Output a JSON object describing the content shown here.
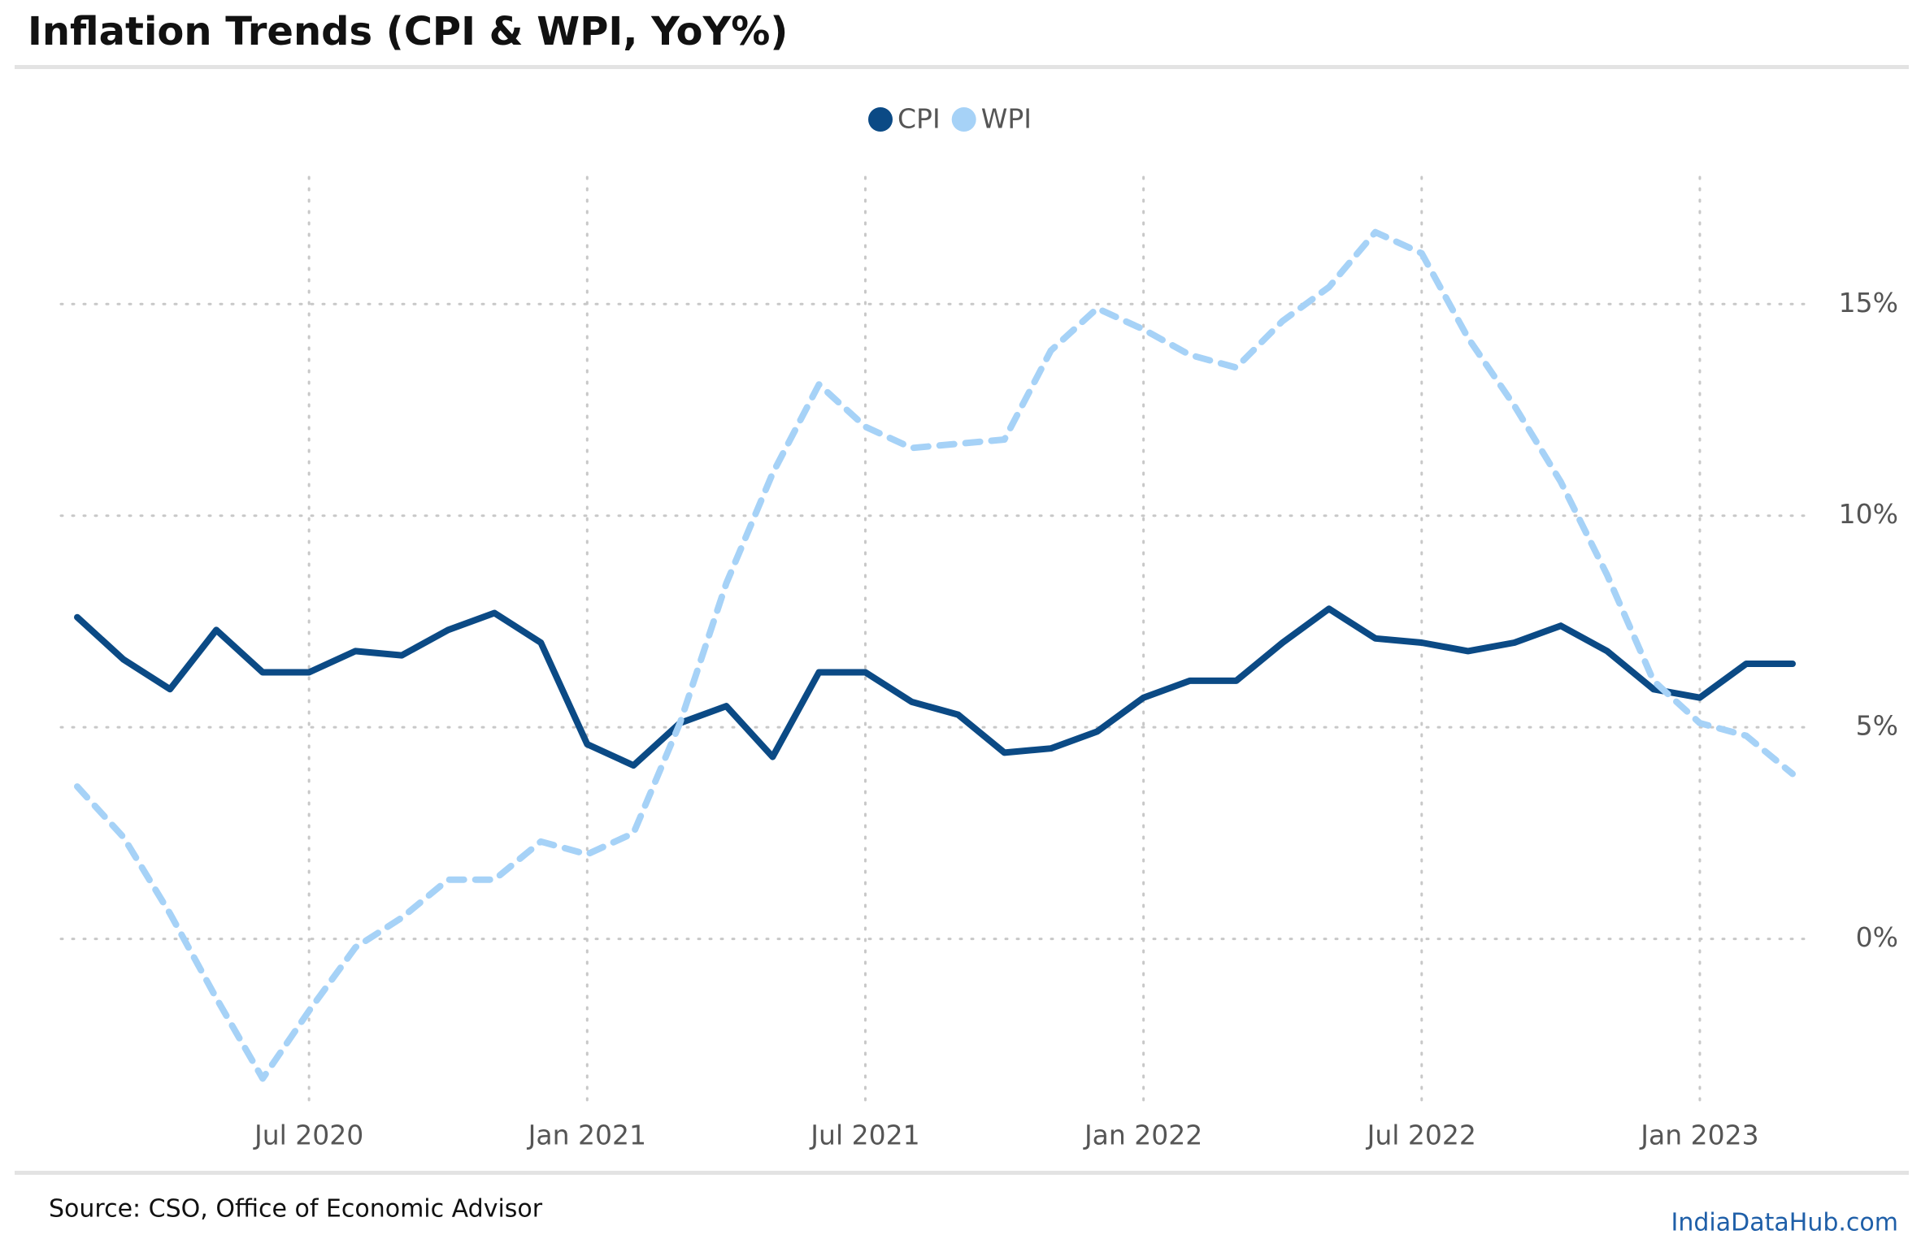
{
  "chart_data": {
    "type": "line",
    "title": "Inflation Trends (CPI & WPI, YoY%)",
    "source": "Source: CSO, Office of Economic Advisor",
    "brand": "IndiaDataHub.com",
    "x": [
      "2020-02",
      "2020-03",
      "2020-04",
      "2020-05",
      "2020-06",
      "2020-07",
      "2020-08",
      "2020-09",
      "2020-10",
      "2020-11",
      "2020-12",
      "2021-01",
      "2021-02",
      "2021-03",
      "2021-04",
      "2021-05",
      "2021-06",
      "2021-07",
      "2021-08",
      "2021-09",
      "2021-10",
      "2021-11",
      "2021-12",
      "2022-01",
      "2022-02",
      "2022-03",
      "2022-04",
      "2022-05",
      "2022-06",
      "2022-07",
      "2022-08",
      "2022-09",
      "2022-10",
      "2022-11",
      "2022-12",
      "2023-01",
      "2023-02",
      "2023-03"
    ],
    "series": [
      {
        "name": "CPI",
        "color": "#0b4a85",
        "dash": false,
        "values": [
          7.6,
          6.6,
          5.9,
          7.3,
          6.3,
          6.3,
          6.8,
          6.7,
          7.3,
          7.7,
          7.0,
          4.6,
          4.1,
          5.1,
          5.5,
          4.3,
          6.3,
          6.3,
          5.6,
          5.3,
          4.4,
          4.5,
          4.9,
          5.7,
          6.1,
          6.1,
          7.0,
          7.8,
          7.1,
          7.0,
          6.8,
          7.0,
          7.4,
          6.8,
          5.9,
          5.7,
          6.5,
          6.5
        ]
      },
      {
        "name": "WPI",
        "color": "#a6d2f7",
        "dash": true,
        "values": [
          3.6,
          2.4,
          0.6,
          -1.4,
          -3.3,
          -1.7,
          -0.2,
          0.5,
          1.4,
          1.4,
          2.3,
          2.0,
          2.5,
          5.1,
          8.4,
          11.0,
          13.1,
          12.1,
          11.6,
          11.7,
          11.8,
          13.9,
          14.9,
          14.4,
          13.8,
          13.5,
          14.6,
          15.4,
          16.7,
          16.2,
          14.2,
          12.6,
          10.8,
          8.6,
          6.1,
          5.1,
          4.8,
          3.9
        ]
      }
    ],
    "xticks": [
      {
        "value": "2020-07",
        "label": "Jul 2020"
      },
      {
        "value": "2021-01",
        "label": "Jan 2021"
      },
      {
        "value": "2021-07",
        "label": "Jul 2021"
      },
      {
        "value": "2022-01",
        "label": "Jan 2022"
      },
      {
        "value": "2022-07",
        "label": "Jul 2022"
      },
      {
        "value": "2023-01",
        "label": "Jan 2023"
      }
    ],
    "ylim": [
      -4,
      18
    ],
    "yticks": [
      {
        "value": 0,
        "label": "0%"
      },
      {
        "value": 5,
        "label": "5%"
      },
      {
        "value": 10,
        "label": "10%"
      },
      {
        "value": 15,
        "label": "15%"
      }
    ],
    "grid": true,
    "legend": "top"
  }
}
